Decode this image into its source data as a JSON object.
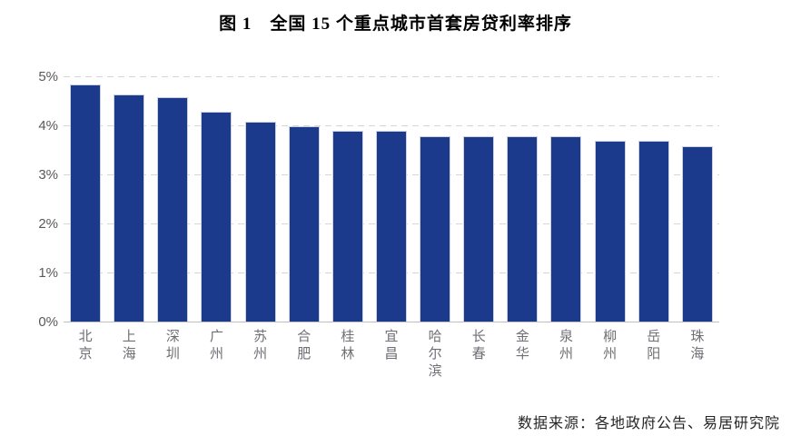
{
  "title": "图 1　全国 15 个重点城市首套房贷利率排序",
  "source_note": "数据来源：各地政府公告、易居研究院",
  "colors": {
    "bar": "#1b3a8c",
    "gridline": "#d6d6d6",
    "axis_line": "#c0c0c0",
    "tick_label": "#595959",
    "category_label": "#6e6e74",
    "title": "#000000"
  },
  "chart_data": {
    "type": "bar",
    "title": "图 1　全国 15 个重点城市首套房贷利率排序",
    "categories": [
      "北京",
      "上海",
      "深圳",
      "广州",
      "苏州",
      "合肥",
      "桂林",
      "宜昌",
      "哈尔滨",
      "长春",
      "金华",
      "泉州",
      "柳州",
      "岳阳",
      "珠海"
    ],
    "values": [
      4.85,
      4.65,
      4.6,
      4.3,
      4.1,
      4.0,
      3.9,
      3.9,
      3.8,
      3.8,
      3.8,
      3.8,
      3.7,
      3.7,
      3.6
    ],
    "unit": "%",
    "xlabel": "",
    "ylabel": "",
    "ylim": [
      0,
      5
    ],
    "yticks": [
      "0%",
      "1%",
      "2%",
      "3%",
      "4%",
      "5%"
    ],
    "grid": "dashed-horizontal",
    "legend": "none",
    "bar_color": "#1b3a8c",
    "annotation": "数据来源：各地政府公告、易居研究院"
  }
}
